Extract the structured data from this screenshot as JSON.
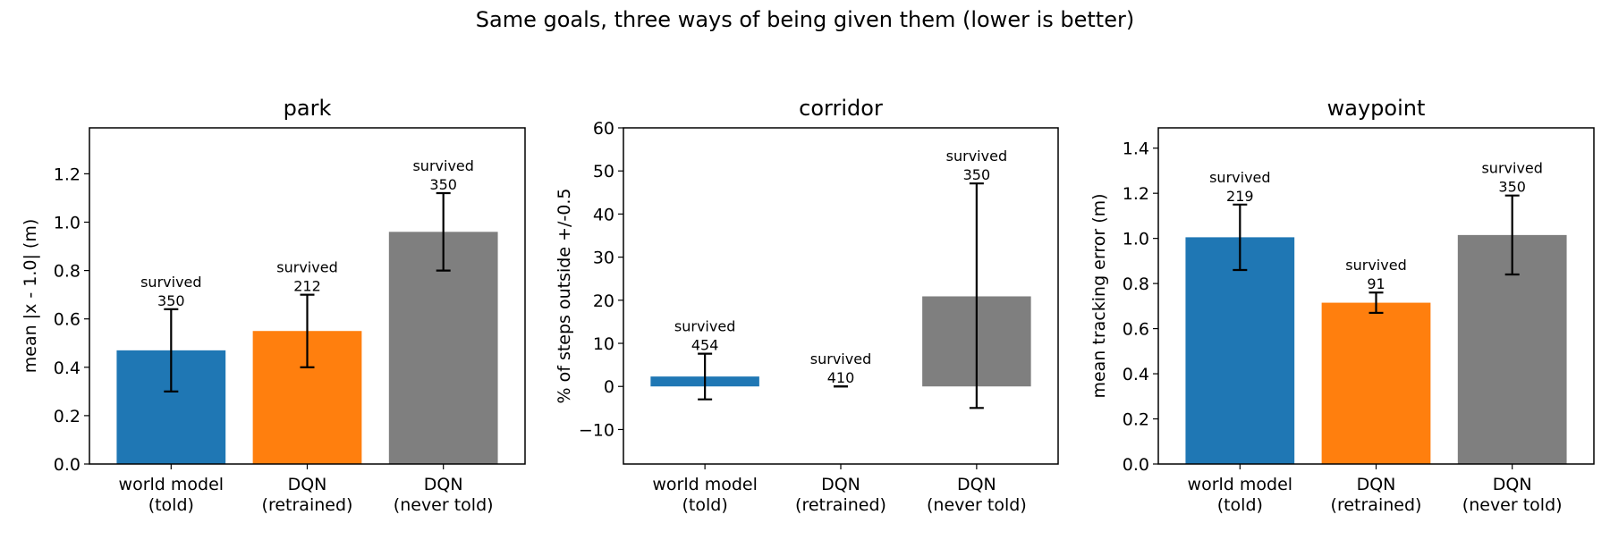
{
  "figure": {
    "suptitle": "Same goals, three ways of being given them (lower is better)"
  },
  "colors": {
    "world_model": "#1f77b4",
    "dqn_retrained": "#ff7f0e",
    "dqn_never_told": "#7f7f7f"
  },
  "chart_data": [
    {
      "type": "bar",
      "title": "park",
      "xlabel": "",
      "ylabel": "mean |x - 1.0| (m)",
      "categories": [
        "world model\n(told)",
        "DQN\n(retrained)",
        "DQN\n(never told)"
      ],
      "values": [
        0.47,
        0.55,
        0.96
      ],
      "error_low": [
        0.3,
        0.4,
        0.8
      ],
      "error_high": [
        0.64,
        0.7,
        1.12
      ],
      "annotations": [
        "survived\n350",
        "survived\n212",
        "survived\n350"
      ],
      "ylim": [
        0,
        1.39
      ],
      "yticks": [
        0.0,
        0.2,
        0.4,
        0.6,
        0.8,
        1.0,
        1.2
      ],
      "ytick_labels": [
        "0.0",
        "0.2",
        "0.4",
        "0.6",
        "0.8",
        "1.0",
        "1.2"
      ],
      "colors": [
        "#1f77b4",
        "#ff7f0e",
        "#7f7f7f"
      ],
      "grid": false
    },
    {
      "type": "bar",
      "title": "corridor",
      "xlabel": "",
      "ylabel": "% of steps outside +/-0.5",
      "categories": [
        "world model\n(told)",
        "DQN\n(retrained)",
        "DQN\n(never told)"
      ],
      "values": [
        2.3,
        0.0,
        20.9
      ],
      "error_low": [
        -3.0,
        0.0,
        -5.0
      ],
      "error_high": [
        7.6,
        0.0,
        47.1
      ],
      "annotations": [
        "survived\n454",
        "survived\n410",
        "survived\n350"
      ],
      "ylim": [
        -18,
        60
      ],
      "yticks": [
        -10,
        0,
        10,
        20,
        30,
        40,
        50,
        60
      ],
      "ytick_labels": [
        "−10",
        "0",
        "10",
        "20",
        "30",
        "40",
        "50",
        "60"
      ],
      "colors": [
        "#1f77b4",
        "#ff7f0e",
        "#7f7f7f"
      ],
      "grid": false
    },
    {
      "type": "bar",
      "title": "waypoint",
      "xlabel": "",
      "ylabel": "mean tracking error (m)",
      "categories": [
        "world model\n(told)",
        "DQN\n(retrained)",
        "DQN\n(never told)"
      ],
      "values": [
        1.005,
        0.715,
        1.015
      ],
      "error_low": [
        0.86,
        0.67,
        0.84
      ],
      "error_high": [
        1.15,
        0.76,
        1.19
      ],
      "annotations": [
        "survived\n219",
        "survived\n91",
        "survived\n350"
      ],
      "ylim": [
        0,
        1.49
      ],
      "yticks": [
        0.0,
        0.2,
        0.4,
        0.6,
        0.8,
        1.0,
        1.2,
        1.4
      ],
      "ytick_labels": [
        "0.0",
        "0.2",
        "0.4",
        "0.6",
        "0.8",
        "1.0",
        "1.2",
        "1.4"
      ],
      "colors": [
        "#1f77b4",
        "#ff7f0e",
        "#7f7f7f"
      ],
      "grid": false
    }
  ]
}
